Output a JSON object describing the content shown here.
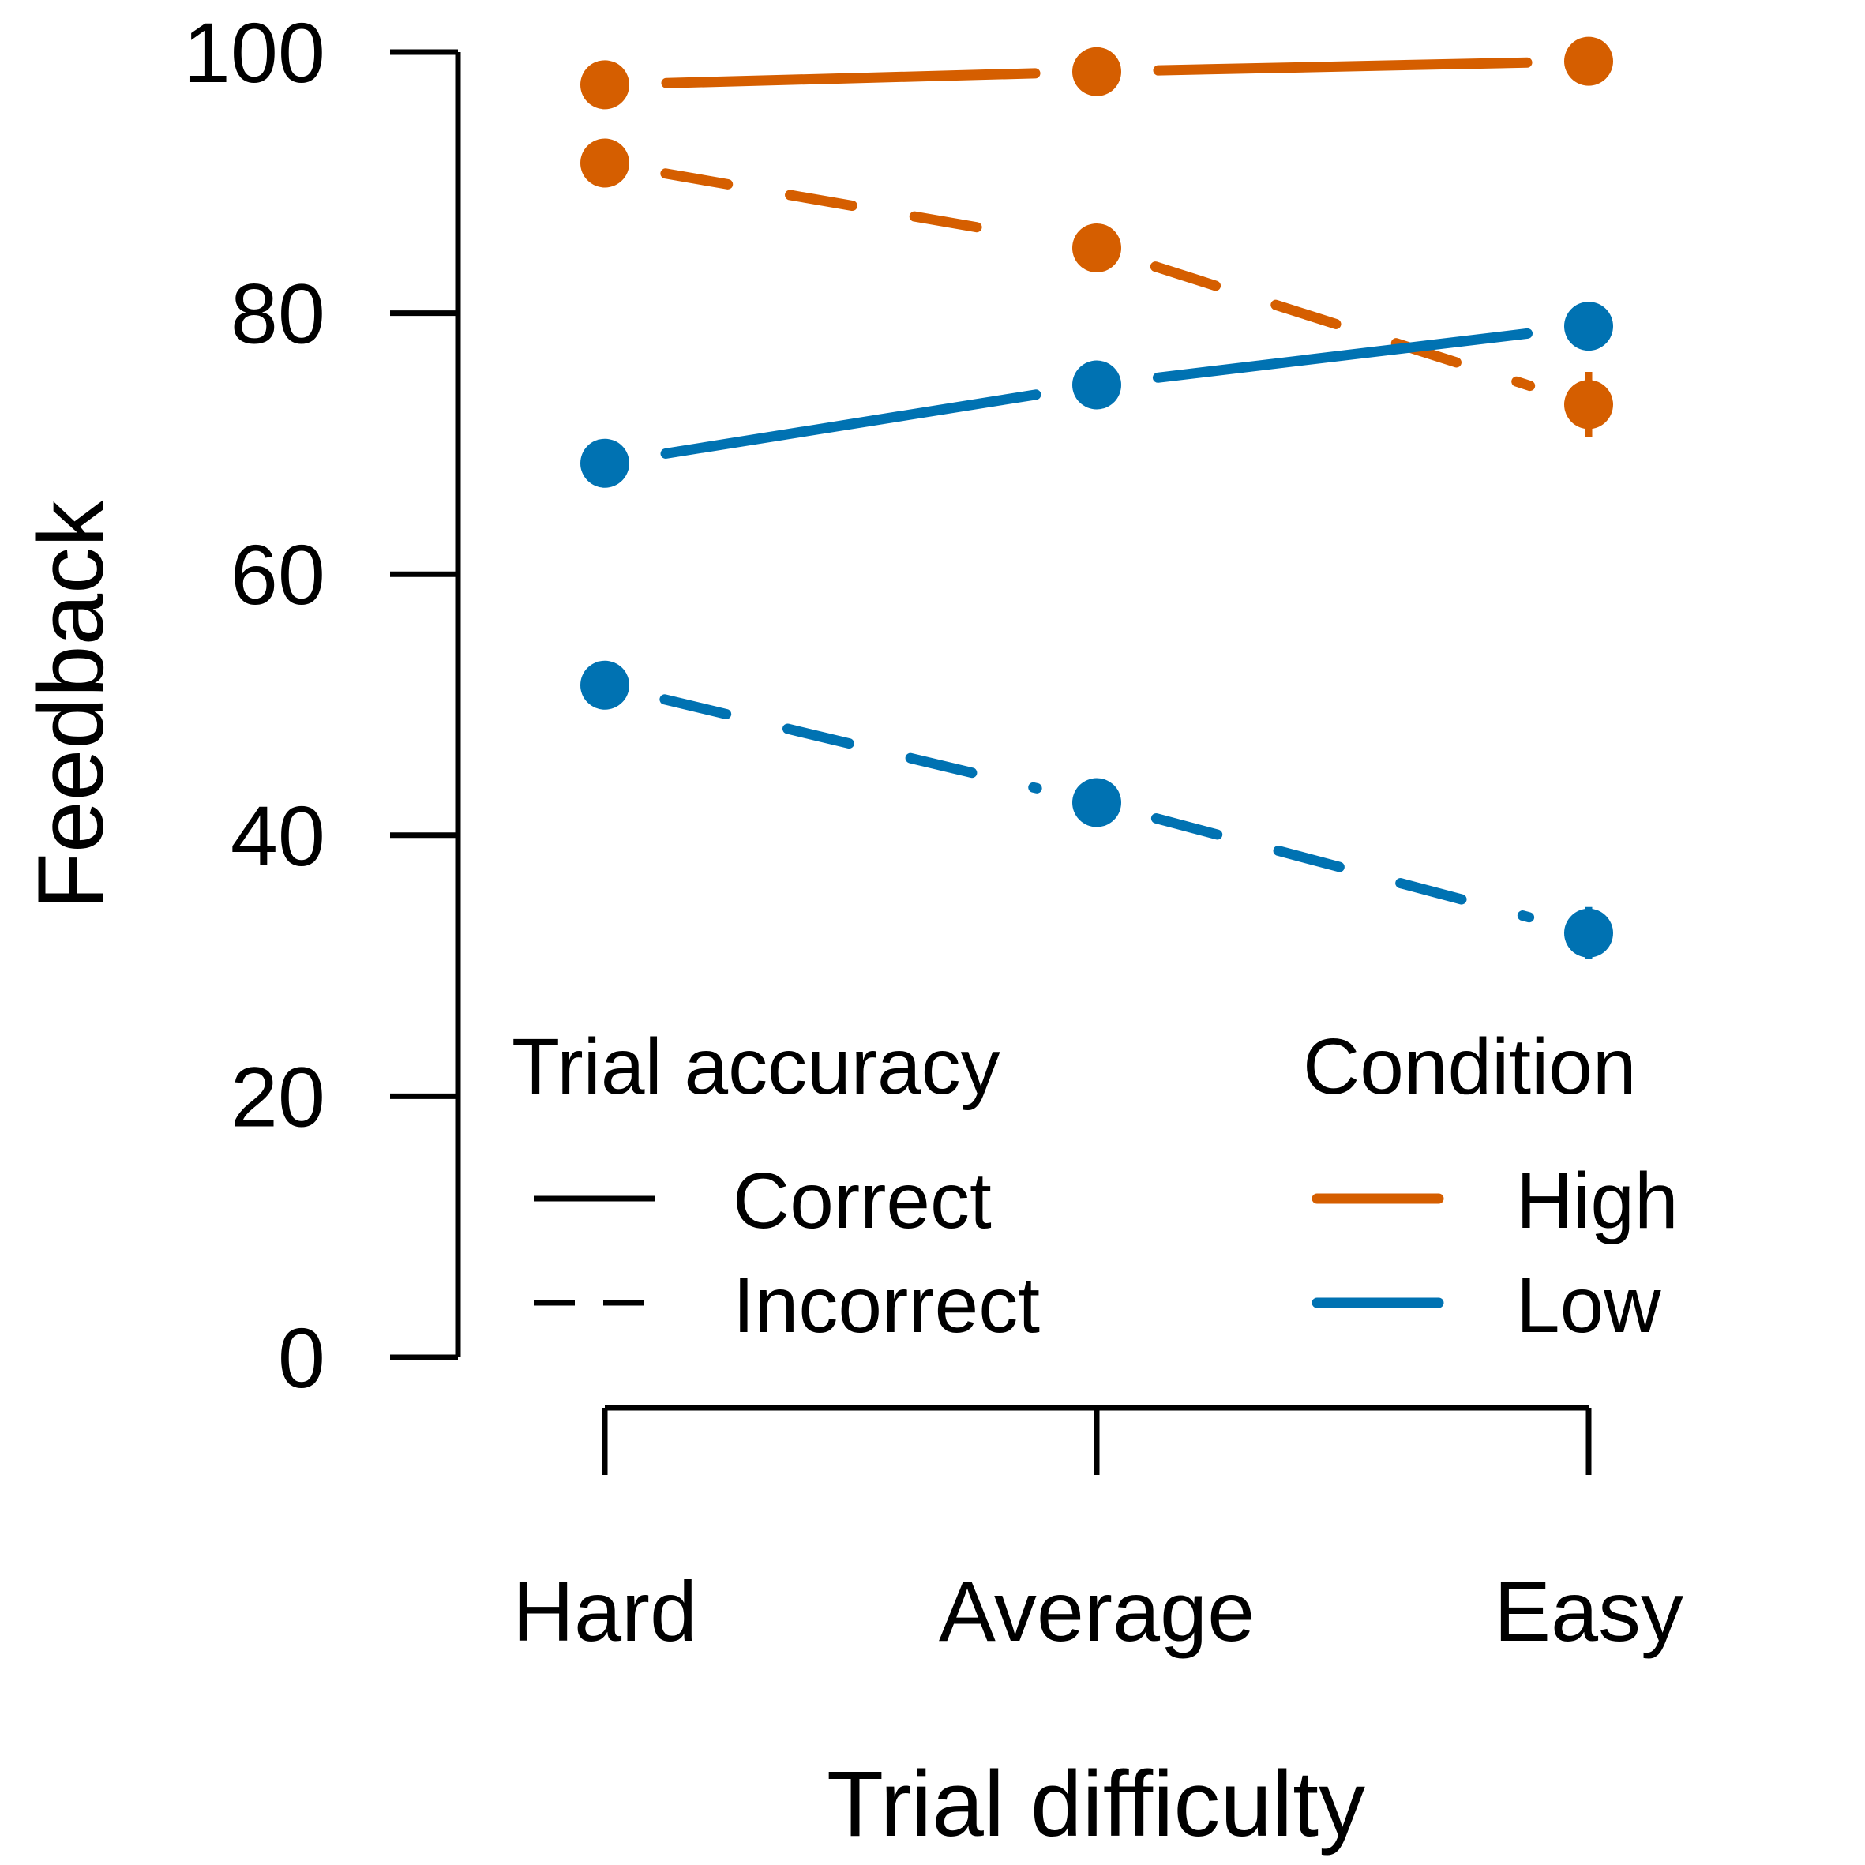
{
  "chart_data": {
    "type": "line",
    "title": "",
    "xlabel": "Trial difficulty",
    "ylabel": "Feedback",
    "categories": [
      "Hard",
      "Average",
      "Easy"
    ],
    "ylim": [
      0,
      100
    ],
    "yticks": [
      0,
      20,
      40,
      60,
      80,
      100
    ],
    "grid": false,
    "series": [
      {
        "condition": "High",
        "accuracy": "Correct",
        "values": [
          97.5,
          98.5,
          99.3
        ],
        "errors": [
          0.3,
          0.3,
          0.3
        ]
      },
      {
        "condition": "High",
        "accuracy": "Incorrect",
        "values": [
          91.5,
          85.0,
          73.0
        ],
        "errors": [
          0.5,
          0.5,
          2.5
        ]
      },
      {
        "condition": "Low",
        "accuracy": "Correct",
        "values": [
          68.5,
          74.5,
          79.0
        ],
        "errors": [
          0.5,
          0.5,
          0.8
        ]
      },
      {
        "condition": "Low",
        "accuracy": "Incorrect",
        "values": [
          51.5,
          42.5,
          32.5
        ],
        "errors": [
          0.5,
          0.5,
          2.0
        ]
      }
    ],
    "legend": {
      "placement": "bottom-right",
      "linetype_title": "Trial accuracy",
      "linetype_entries": [
        "Correct",
        "Incorrect"
      ],
      "color_title": "Condition",
      "color_entries": [
        "High",
        "Low"
      ]
    },
    "colors": {
      "High": "#D55E00",
      "Low": "#0072B2"
    }
  }
}
